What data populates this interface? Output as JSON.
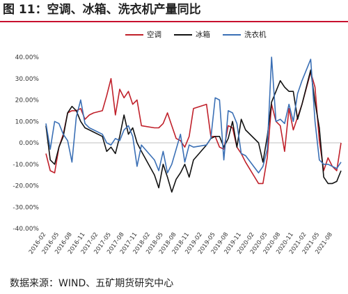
{
  "title": "图 11：空调、冰箱、洗衣机产量同比",
  "source": "数据来源：WIND、五矿期货研究中心",
  "chart_data": {
    "type": "line",
    "title": "图 11：空调、冰箱、洗衣机产量同比",
    "xlabel": "",
    "ylabel": "",
    "ylim": [
      -0.4,
      0.4
    ],
    "y_ticks": [
      "40.00%",
      "30.00%",
      "20.00%",
      "10.00%",
      "0.00%",
      "-10.00%",
      "-20.00%",
      "-30.00%",
      "-40.00%"
    ],
    "x_ticks": [
      "2016-02",
      "2016-05",
      "2016-08",
      "2016-11",
      "2017-02",
      "2017-05",
      "2017-08",
      "2017-11",
      "2018-02",
      "2018-05",
      "2018-08",
      "2018-11",
      "2019-02",
      "2019-05",
      "2019-08",
      "2019-11",
      "2020-02",
      "2020-05",
      "2020-08",
      "2020-11",
      "2021-02",
      "2021-05",
      "2021-08"
    ],
    "grid": false,
    "legend_position": "top-center",
    "series": [
      {
        "name": "空调",
        "color": "#c0202a",
        "x": [
          "2016-02",
          "2016-03",
          "2016-04",
          "2016-05",
          "2016-06",
          "2016-07",
          "2016-08",
          "2016-09",
          "2016-10",
          "2016-11",
          "2016-12",
          "2017-01",
          "2017-03",
          "2017-04",
          "2017-05",
          "2017-06",
          "2017-07",
          "2017-08",
          "2017-09",
          "2017-10",
          "2017-11",
          "2017-12",
          "2018-03",
          "2018-04",
          "2018-05",
          "2018-06",
          "2018-07",
          "2018-08",
          "2018-09",
          "2018-10",
          "2018-11",
          "2018-12",
          "2019-03",
          "2019-04",
          "2019-05",
          "2019-06",
          "2019-07",
          "2019-08",
          "2019-09",
          "2019-10",
          "2019-11",
          "2019-12",
          "2020-03",
          "2020-04",
          "2020-05",
          "2020-06",
          "2020-07",
          "2020-08",
          "2020-09",
          "2020-10",
          "2020-11",
          "2020-12",
          "2021-01",
          "2021-03",
          "2021-04",
          "2021-05",
          "2021-06",
          "2021-07",
          "2021-08",
          "2021-09",
          "2021-10"
        ],
        "values": [
          -0.05,
          -0.13,
          -0.14,
          -0.02,
          0.04,
          0.14,
          0.15,
          0.15,
          0.16,
          0.11,
          0.13,
          0.14,
          0.15,
          0.22,
          0.3,
          0.13,
          0.25,
          0.21,
          0.24,
          0.18,
          0.2,
          0.08,
          0.07,
          0.07,
          0.09,
          0.14,
          0.08,
          0.02,
          0.01,
          -0.02,
          0.03,
          0.16,
          0.18,
          0.03,
          0.03,
          -0.02,
          -0.03,
          0.08,
          0.07,
          -0.02,
          -0.05,
          -0.09,
          -0.19,
          -0.19,
          -0.07,
          0.18,
          0.1,
          0.08,
          -0.04,
          0.16,
          0.06,
          0.12,
          0.18,
          0.33,
          0.26,
          0.01,
          -0.13,
          -0.07,
          -0.11,
          -0.13,
          0.0
        ]
      },
      {
        "name": "冰箱",
        "color": "#111111",
        "x": [
          "2016-02",
          "2016-03",
          "2016-04",
          "2016-05",
          "2016-06",
          "2016-07",
          "2016-08",
          "2016-09",
          "2016-10",
          "2016-11",
          "2016-12",
          "2017-01",
          "2017-03",
          "2017-04",
          "2017-05",
          "2017-06",
          "2017-07",
          "2017-08",
          "2017-09",
          "2017-10",
          "2017-11",
          "2017-12",
          "2018-03",
          "2018-04",
          "2018-05",
          "2018-06",
          "2018-07",
          "2018-08",
          "2018-09",
          "2018-10",
          "2018-11",
          "2018-12",
          "2019-03",
          "2019-04",
          "2019-05",
          "2019-06",
          "2019-07",
          "2019-08",
          "2019-09",
          "2019-10",
          "2019-11",
          "2019-12",
          "2020-03",
          "2020-04",
          "2020-05",
          "2020-06",
          "2020-07",
          "2020-08",
          "2020-09",
          "2020-10",
          "2020-11",
          "2020-12",
          "2021-01",
          "2021-03",
          "2021-04",
          "2021-05",
          "2021-06",
          "2021-07",
          "2021-08",
          "2021-09",
          "2021-10"
        ],
        "values": [
          0.08,
          -0.08,
          -0.1,
          -0.02,
          0.03,
          0.14,
          0.17,
          0.15,
          0.1,
          0.07,
          0.06,
          0.05,
          0.03,
          -0.04,
          -0.02,
          -0.05,
          0.03,
          0.13,
          0.04,
          0.07,
          0.0,
          -0.04,
          -0.15,
          -0.21,
          -0.1,
          -0.16,
          -0.23,
          -0.17,
          -0.14,
          -0.1,
          -0.16,
          -0.08,
          -0.01,
          0.02,
          0.03,
          0.03,
          -0.02,
          0.02,
          0.1,
          -0.02,
          0.11,
          0.06,
          0.0,
          -0.09,
          0.03,
          0.19,
          0.24,
          0.29,
          0.26,
          0.24,
          0.24,
          0.11,
          0.18,
          0.34,
          0.19,
          0.07,
          -0.16,
          -0.19,
          -0.19,
          -0.18,
          -0.13
        ]
      },
      {
        "name": "洗衣机",
        "color": "#3a6fb5",
        "x": [
          "2016-02",
          "2016-03",
          "2016-04",
          "2016-05",
          "2016-06",
          "2016-07",
          "2016-08",
          "2016-09",
          "2016-10",
          "2016-11",
          "2016-12",
          "2017-01",
          "2017-03",
          "2017-04",
          "2017-05",
          "2017-06",
          "2017-07",
          "2017-08",
          "2017-09",
          "2017-10",
          "2017-11",
          "2017-12",
          "2018-03",
          "2018-04",
          "2018-05",
          "2018-06",
          "2018-07",
          "2018-08",
          "2018-09",
          "2018-10",
          "2018-11",
          "2018-12",
          "2019-03",
          "2019-04",
          "2019-05",
          "2019-06",
          "2019-07",
          "2019-08",
          "2019-09",
          "2019-10",
          "2019-11",
          "2019-12",
          "2020-03",
          "2020-04",
          "2020-05",
          "2020-06",
          "2020-07",
          "2020-08",
          "2020-09",
          "2020-10",
          "2020-11",
          "2020-12",
          "2021-01",
          "2021-03",
          "2021-04",
          "2021-05",
          "2021-06",
          "2021-07",
          "2021-09",
          "2021-10"
        ],
        "values": [
          0.09,
          -0.03,
          0.1,
          0.09,
          0.04,
          0.01,
          -0.09,
          0.12,
          0.2,
          0.09,
          0.07,
          0.06,
          0.04,
          0.0,
          -0.01,
          0.02,
          0.01,
          0.06,
          0.08,
          0.03,
          -0.11,
          -0.01,
          -0.08,
          -0.13,
          -0.04,
          -0.14,
          -0.1,
          -0.03,
          0.04,
          -0.09,
          -0.01,
          -0.02,
          -0.01,
          0.02,
          0.21,
          0.2,
          -0.08,
          0.15,
          0.14,
          0.09,
          -0.05,
          -0.06,
          -0.14,
          -0.11,
          -0.03,
          0.4,
          0.1,
          0.11,
          0.09,
          0.18,
          0.1,
          0.23,
          0.29,
          0.39,
          0.1,
          -0.08,
          -0.1,
          -0.1,
          -0.12,
          -0.09
        ]
      }
    ]
  }
}
